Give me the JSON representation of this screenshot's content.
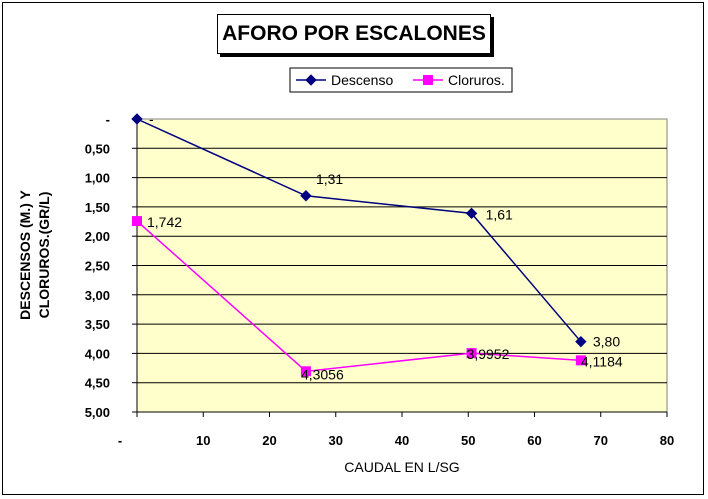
{
  "chart_data": {
    "type": "line",
    "title": "AFORO POR ESCALONES",
    "xlabel": "CAUDAL EN L/SG",
    "ylabel": [
      "DESCENSOS (M.) Y",
      "CLORUROS.(GR/L)"
    ],
    "xlim": [
      0,
      80
    ],
    "ylim": [
      0,
      5
    ],
    "y_inverted": true,
    "x_ticks": [
      0,
      10,
      20,
      30,
      40,
      50,
      60,
      70,
      80
    ],
    "x_tick_labels": [
      "-",
      "10",
      "20",
      "30",
      "40",
      "50",
      "60",
      "70",
      "80"
    ],
    "y_ticks": [
      0,
      0.5,
      1,
      1.5,
      2,
      2.5,
      3,
      3.5,
      4,
      4.5,
      5
    ],
    "y_tick_labels": [
      "-",
      "0,50",
      "1,00",
      "1,50",
      "2,00",
      "2,50",
      "3,00",
      "3,50",
      "4,00",
      "4,50",
      "5,00"
    ],
    "grid": "horizontal",
    "legend_position": "top",
    "plot_background": "#ffffcc",
    "series": [
      {
        "name": "Descenso",
        "color": "#000080",
        "marker": "diamond",
        "x": [
          0,
          25.5,
          50.5,
          67
        ],
        "y": [
          0,
          1.31,
          1.61,
          3.8
        ],
        "labels": [
          "-",
          "1,31",
          "1,61",
          "3,80"
        ]
      },
      {
        "name": "Cloruros.",
        "color": "#ff00ff",
        "marker": "square",
        "x": [
          0,
          25.5,
          50.5,
          67
        ],
        "y": [
          1.742,
          4.3056,
          3.9952,
          4.1184
        ],
        "labels": [
          "1,742",
          "4,3056",
          "3,9952",
          "4,1184"
        ]
      }
    ]
  }
}
